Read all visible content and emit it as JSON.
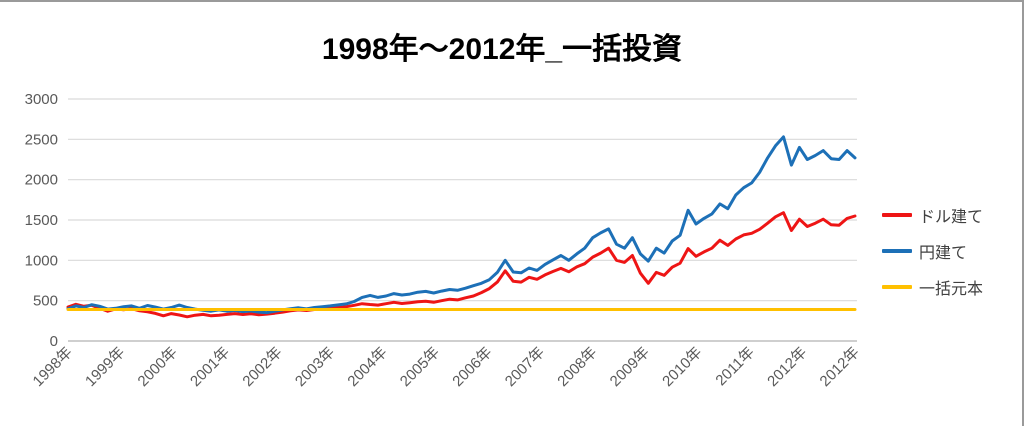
{
  "window": {
    "border_color": "#9a9a9a",
    "background": "#ffffff"
  },
  "chart_data": {
    "type": "line",
    "title": "1998年〜2012年_一括投資",
    "xlabel": "",
    "ylabel": "",
    "ylim": [
      0,
      3000
    ],
    "y_ticks": [
      0,
      500,
      1000,
      1500,
      2000,
      2500,
      3000
    ],
    "xlim": [
      1998.0,
      2012.85
    ],
    "x_tick_labels": [
      "1998年",
      "1999年",
      "2000年",
      "2001年",
      "2002年",
      "2003年",
      "2004年",
      "2005年",
      "2006年",
      "2007年",
      "2008年",
      "2009年",
      "2010年",
      "2011年",
      "2012年",
      "2012年"
    ],
    "grid": "horizontal",
    "legend_position": "right",
    "x_start": 1998.0,
    "x_step": 0.15,
    "series": [
      {
        "name": "ドル建て",
        "color": "#ee1515",
        "values": [
          420,
          455,
          430,
          442,
          405,
          370,
          398,
          388,
          400,
          375,
          362,
          342,
          312,
          340,
          322,
          300,
          320,
          330,
          312,
          320,
          330,
          340,
          328,
          338,
          326,
          334,
          345,
          358,
          374,
          386,
          378,
          390,
          394,
          404,
          415,
          425,
          442,
          462,
          452,
          445,
          462,
          480,
          465,
          475,
          486,
          492,
          480,
          500,
          518,
          510,
          535,
          558,
          600,
          650,
          730,
          870,
          740,
          730,
          790,
          765,
          820,
          862,
          900,
          858,
          918,
          958,
          1040,
          1090,
          1150,
          1000,
          975,
          1060,
          840,
          715,
          850,
          815,
          915,
          965,
          1145,
          1050,
          1105,
          1150,
          1250,
          1185,
          1265,
          1315,
          1335,
          1385,
          1460,
          1540,
          1590,
          1370,
          1510,
          1420,
          1460,
          1510,
          1440,
          1435,
          1520,
          1550
        ]
      },
      {
        "name": "円建て",
        "color": "#1d70b7",
        "values": [
          400,
          435,
          415,
          450,
          430,
          395,
          405,
          425,
          435,
          405,
          440,
          420,
          395,
          415,
          445,
          415,
          395,
          380,
          370,
          385,
          370,
          378,
          365,
          372,
          358,
          352,
          368,
          385,
          400,
          412,
          398,
          415,
          425,
          435,
          448,
          460,
          490,
          540,
          565,
          540,
          558,
          588,
          570,
          582,
          605,
          615,
          595,
          618,
          638,
          628,
          655,
          685,
          715,
          760,
          850,
          1000,
          855,
          845,
          905,
          875,
          950,
          1005,
          1060,
          1000,
          1080,
          1150,
          1280,
          1340,
          1390,
          1200,
          1150,
          1280,
          1080,
          990,
          1150,
          1090,
          1240,
          1310,
          1620,
          1450,
          1520,
          1575,
          1700,
          1640,
          1810,
          1900,
          1960,
          2090,
          2270,
          2420,
          2530,
          2180,
          2400,
          2250,
          2300,
          2360,
          2260,
          2250,
          2360,
          2270
        ]
      },
      {
        "name": "一括元本",
        "color": "#ffc000",
        "x": [
          1998.0,
          2012.85
        ],
        "values": [
          390,
          390
        ]
      }
    ],
    "style": {
      "gridline_color": "#d9d9d9",
      "axis_line_color": "#bfbfbf",
      "tick_text_color": "#595959",
      "title_color": "#000000",
      "line_width": 3
    }
  },
  "legend": {
    "items": [
      {
        "label": "ドル建て"
      },
      {
        "label": "円建て"
      },
      {
        "label": "一括元本"
      }
    ]
  }
}
